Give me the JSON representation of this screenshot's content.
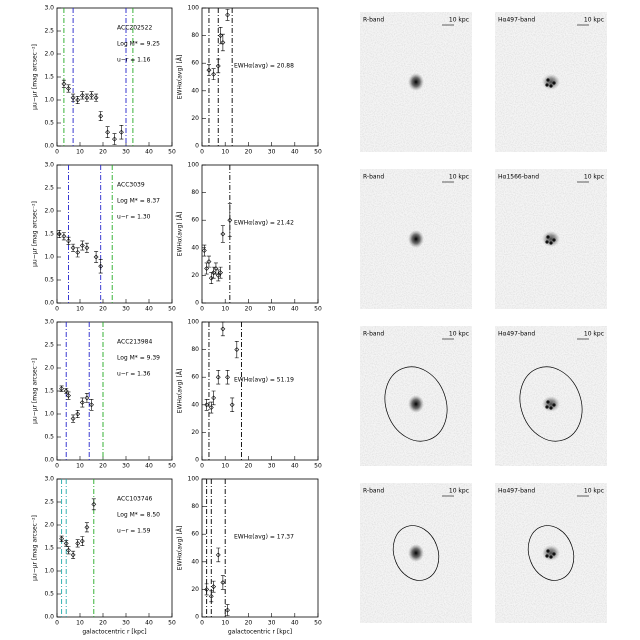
{
  "chart_data": [
    {
      "type": "scatter",
      "ylabel": "μu−μr [mag arcsec⁻²]",
      "annotations": [
        "ACC202522",
        "Log M* = 9.25",
        "u−r = 1.16"
      ],
      "x": [
        3,
        5,
        7,
        9,
        11,
        13,
        15,
        17,
        19,
        22,
        25,
        28
      ],
      "values": [
        1.35,
        1.25,
        1.05,
        1.0,
        1.1,
        1.05,
        1.1,
        1.05,
        0.65,
        0.3,
        0.15,
        0.3
      ],
      "errors": [
        0.08,
        0.08,
        0.08,
        0.08,
        0.08,
        0.08,
        0.08,
        0.08,
        0.1,
        0.12,
        0.12,
        0.15
      ],
      "vlines": [
        {
          "value": 3,
          "color": "#22aa22"
        },
        {
          "value": 7,
          "color": "#2222cc"
        },
        {
          "value": 30,
          "color": "#2222cc"
        },
        {
          "value": 33,
          "color": "#22aa22"
        }
      ],
      "xlim": [
        0,
        50
      ],
      "ylim": [
        0,
        3
      ],
      "xticks": [
        0,
        10,
        20,
        30,
        40,
        50
      ],
      "yticks": [
        {
          "value": 0,
          "label": "0.0"
        },
        {
          "value": 0.5,
          "label": "0.5"
        },
        {
          "value": 1,
          "label": "1.0"
        },
        {
          "value": 1.5,
          "label": "1.5"
        },
        {
          "value": 2,
          "label": "2.0"
        },
        {
          "value": 2.5,
          "label": "2.5"
        },
        {
          "value": 3,
          "label": "3.0"
        }
      ]
    },
    {
      "type": "scatter",
      "ylabel": "EWHα(avg) [Å]",
      "annotations": [
        "EWHα(avg) = 20.88"
      ],
      "x": [
        3,
        5,
        7,
        8,
        9,
        11
      ],
      "values": [
        55,
        52,
        58,
        80,
        75,
        95
      ],
      "errors": [
        4,
        4,
        5,
        6,
        6,
        4
      ],
      "vlines": [
        {
          "value": 3,
          "color": "#000000"
        },
        {
          "value": 7,
          "color": "#000000"
        },
        {
          "value": 13,
          "color": "#000000"
        }
      ],
      "xlim": [
        0,
        50
      ],
      "ylim": [
        0,
        100
      ],
      "xticks": [
        0,
        10,
        20,
        30,
        40,
        50
      ],
      "yticks": [
        0,
        20,
        40,
        60,
        80,
        100
      ]
    },
    {
      "type": "scatter",
      "ylabel": "μu−μr [mag arcsec⁻²]",
      "annotations": [
        "ACC3039",
        "Log M* = 8.37",
        "u−r = 1.30"
      ],
      "x": [
        1,
        3,
        5,
        7,
        9,
        11,
        13,
        17,
        19
      ],
      "values": [
        1.5,
        1.45,
        1.35,
        1.2,
        1.1,
        1.25,
        1.2,
        1.0,
        0.8
      ],
      "errors": [
        0.08,
        0.08,
        0.08,
        0.08,
        0.1,
        0.1,
        0.1,
        0.12,
        0.15
      ],
      "vlines": [
        {
          "value": 5,
          "color": "#2222cc"
        },
        {
          "value": 19,
          "color": "#2222cc"
        },
        {
          "value": 24,
          "color": "#22aa22"
        }
      ],
      "xlim": [
        0,
        50
      ],
      "ylim": [
        0,
        3
      ],
      "xticks": [
        0,
        10,
        20,
        30,
        40,
        50
      ],
      "yticks": [
        {
          "value": 0,
          "label": "0.0"
        },
        {
          "value": 0.5,
          "label": "0.5"
        },
        {
          "value": 1,
          "label": "1.0"
        },
        {
          "value": 1.5,
          "label": "1.5"
        },
        {
          "value": 2,
          "label": "2.0"
        },
        {
          "value": 2.5,
          "label": "2.5"
        },
        {
          "value": 3,
          "label": "3.0"
        }
      ]
    },
    {
      "type": "scatter",
      "ylabel": "EWHα(avg) [Å]",
      "annotations": [
        "EWHα(avg) = 21.42"
      ],
      "x": [
        1,
        2,
        3,
        4,
        5,
        6,
        7,
        8,
        9,
        12
      ],
      "values": [
        38,
        25,
        30,
        18,
        22,
        25,
        20,
        22,
        50,
        60
      ],
      "errors": [
        4,
        4,
        4,
        4,
        4,
        4,
        4,
        4,
        6,
        12
      ],
      "vlines": [
        {
          "value": 12,
          "color": "#000000"
        }
      ],
      "xlim": [
        0,
        50
      ],
      "ylim": [
        0,
        100
      ],
      "xticks": [
        0,
        10,
        20,
        30,
        40,
        50
      ],
      "yticks": [
        0,
        20,
        40,
        60,
        80,
        100
      ]
    },
    {
      "type": "scatter",
      "ylabel": "μu−μr [mag arcsec⁻²]",
      "annotations": [
        "ACC213984",
        "Log M* = 9.39",
        "u−r = 1.36"
      ],
      "x": [
        2,
        4,
        5,
        7,
        9,
        11,
        13,
        15
      ],
      "values": [
        1.55,
        1.5,
        1.4,
        0.9,
        1.0,
        1.25,
        1.35,
        1.2
      ],
      "errors": [
        0.06,
        0.06,
        0.08,
        0.08,
        0.08,
        0.1,
        0.1,
        0.12
      ],
      "vlines": [
        {
          "value": 4,
          "color": "#2222cc"
        },
        {
          "value": 14,
          "color": "#2222cc"
        },
        {
          "value": 20,
          "color": "#22aa22"
        }
      ],
      "xlim": [
        0,
        50
      ],
      "ylim": [
        0,
        3
      ],
      "xticks": [
        0,
        10,
        20,
        30,
        40,
        50
      ],
      "yticks": [
        {
          "value": 0,
          "label": "0.0"
        },
        {
          "value": 0.5,
          "label": "0.5"
        },
        {
          "value": 1,
          "label": "1.0"
        },
        {
          "value": 1.5,
          "label": "1.5"
        },
        {
          "value": 2,
          "label": "2.0"
        },
        {
          "value": 2.5,
          "label": "2.5"
        },
        {
          "value": 3,
          "label": "3.0"
        }
      ]
    },
    {
      "type": "scatter",
      "ylabel": "EWHα(avg) [Å]",
      "annotations": [
        "EWHα(avg) = 51.19"
      ],
      "x": [
        2,
        4,
        5,
        7,
        9,
        11,
        13,
        15
      ],
      "values": [
        40,
        38,
        45,
        60,
        95,
        60,
        40,
        80
      ],
      "errors": [
        4,
        4,
        5,
        5,
        5,
        5,
        5,
        6
      ],
      "vlines": [
        {
          "value": 3,
          "color": "#000000"
        },
        {
          "value": 17,
          "color": "#000000"
        }
      ],
      "xlim": [
        0,
        50
      ],
      "ylim": [
        0,
        100
      ],
      "xticks": [
        0,
        10,
        20,
        30,
        40,
        50
      ],
      "yticks": [
        0,
        20,
        40,
        60,
        80,
        100
      ]
    },
    {
      "type": "scatter",
      "ylabel": "μu−μr [mag arcsec⁻²]",
      "xlabel": "galactocentric r [kpc]",
      "annotations": [
        "ACC103746",
        "Log M* = 8.50",
        "u−r = 1.59"
      ],
      "x": [
        2,
        4,
        5,
        7,
        9,
        11,
        13,
        16
      ],
      "values": [
        1.7,
        1.6,
        1.45,
        1.35,
        1.6,
        1.65,
        1.95,
        2.45
      ],
      "errors": [
        0.06,
        0.06,
        0.08,
        0.08,
        0.08,
        0.1,
        0.1,
        0.12
      ],
      "vlines": [
        {
          "value": 2,
          "color": "#22aaaa"
        },
        {
          "value": 4,
          "color": "#22aaaa"
        },
        {
          "value": 16,
          "color": "#22aa22"
        }
      ],
      "xlim": [
        0,
        50
      ],
      "ylim": [
        0,
        3
      ],
      "xticks": [
        0,
        10,
        20,
        30,
        40,
        50
      ],
      "yticks": [
        {
          "value": 0,
          "label": "0.0"
        },
        {
          "value": 0.5,
          "label": "0.5"
        },
        {
          "value": 1,
          "label": "1.0"
        },
        {
          "value": 1.5,
          "label": "1.5"
        },
        {
          "value": 2,
          "label": "2.0"
        },
        {
          "value": 2.5,
          "label": "2.5"
        },
        {
          "value": 3,
          "label": "3.0"
        }
      ]
    },
    {
      "type": "scatter",
      "ylabel": "EWHα(avg) [Å]",
      "xlabel": "galactocentric r [kpc]",
      "annotations": [
        "EWHα(avg) = 17.37"
      ],
      "x": [
        2,
        4,
        5,
        7,
        9,
        11
      ],
      "values": [
        20,
        15,
        22,
        45,
        25,
        5
      ],
      "errors": [
        4,
        4,
        4,
        5,
        5,
        4
      ],
      "vlines": [
        {
          "value": 2,
          "color": "#000000"
        },
        {
          "value": 4,
          "color": "#000000"
        },
        {
          "value": 10,
          "color": "#000000"
        }
      ],
      "xlim": [
        0,
        50
      ],
      "ylim": [
        0,
        100
      ],
      "xticks": [
        0,
        10,
        20,
        30,
        40,
        50
      ],
      "yticks": [
        0,
        20,
        40,
        60,
        80,
        100
      ]
    }
  ],
  "images": [
    {
      "label": "R-band",
      "scale": "10 kpc",
      "aperture": false
    },
    {
      "label": "Hα497-band",
      "scale": "10 kpc",
      "aperture": false
    },
    {
      "label": "R-band",
      "scale": "10 kpc",
      "aperture": false
    },
    {
      "label": "Hα1566-band",
      "scale": "10 kpc",
      "aperture": false
    },
    {
      "label": "R-band",
      "scale": "10 kpc",
      "aperture": true
    },
    {
      "label": "Hα497-band",
      "scale": "10 kpc",
      "aperture": true
    },
    {
      "label": "R-band",
      "scale": "10 kpc",
      "aperture": true
    },
    {
      "label": "Hα497-band",
      "scale": "10 kpc",
      "aperture": true
    }
  ]
}
